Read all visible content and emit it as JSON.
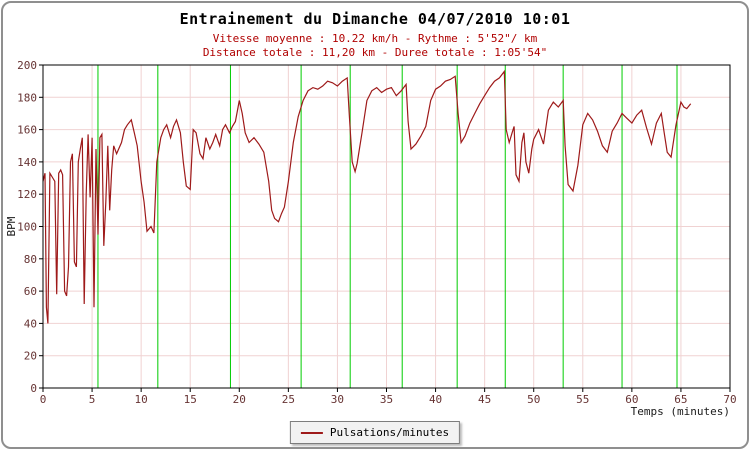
{
  "header": {
    "title": "Entrainement du Dimanche 04/07/2010 10:01",
    "subtitle1": "Vitesse moyenne : 10.22 km/h - Rythme : 5'52\"/ km",
    "subtitle2": "Distance totale : 11,20 km - Duree totale : 1:05'54\""
  },
  "legend": {
    "label": "Pulsations/minutes",
    "line_color": "#9e1a1a"
  },
  "colors": {
    "grid": "#f0d2d2",
    "tick_text": "#663333",
    "axis_label": "#1a1a1a",
    "plot_border": "#000000",
    "frame_border": "#8f8f8f",
    "series_line": "#9e1a1a",
    "km_marker": "#00cc00",
    "subtitle_text": "#b00000",
    "background": "#ffffff"
  },
  "chart_data": {
    "type": "line",
    "title": "Entrainement du Dimanche 04/07/2010 10:01",
    "xlabel": "Temps (minutes)",
    "ylabel": "BPM",
    "xlim": [
      0,
      70
    ],
    "ylim": [
      0,
      200
    ],
    "xticks": [
      0,
      5,
      10,
      15,
      20,
      25,
      30,
      35,
      40,
      45,
      50,
      55,
      60,
      65,
      70
    ],
    "yticks": [
      0,
      20,
      40,
      60,
      80,
      100,
      120,
      140,
      160,
      180,
      200
    ],
    "grid": true,
    "legend_position": "bottom",
    "km_markers": {
      "color": "#00cc00",
      "x": [
        5.6,
        11.7,
        19.1,
        26.3,
        31.3,
        36.6,
        42.2,
        47.1,
        53.0,
        59.0,
        64.6
      ]
    },
    "series": [
      {
        "name": "Pulsations/minutes",
        "color": "#9e1a1a",
        "points": [
          [
            0,
            128
          ],
          [
            0.2,
            133
          ],
          [
            0.35,
            50
          ],
          [
            0.5,
            40
          ],
          [
            0.7,
            133
          ],
          [
            1,
            130
          ],
          [
            1.2,
            128
          ],
          [
            1.4,
            58
          ],
          [
            1.6,
            133
          ],
          [
            1.8,
            135
          ],
          [
            2,
            132
          ],
          [
            2.2,
            60
          ],
          [
            2.4,
            57
          ],
          [
            2.6,
            75
          ],
          [
            2.8,
            140
          ],
          [
            3,
            145
          ],
          [
            3.2,
            78
          ],
          [
            3.4,
            75
          ],
          [
            3.6,
            140
          ],
          [
            3.8,
            148
          ],
          [
            4,
            155
          ],
          [
            4.2,
            52
          ],
          [
            4.4,
            120
          ],
          [
            4.6,
            157
          ],
          [
            4.8,
            118
          ],
          [
            5,
            155
          ],
          [
            5.2,
            50
          ],
          [
            5.4,
            148
          ],
          [
            5.6,
            95
          ],
          [
            5.8,
            155
          ],
          [
            6,
            157
          ],
          [
            6.2,
            88
          ],
          [
            6.4,
            115
          ],
          [
            6.6,
            150
          ],
          [
            6.8,
            110
          ],
          [
            7,
            135
          ],
          [
            7.2,
            150
          ],
          [
            7.5,
            145
          ],
          [
            8,
            152
          ],
          [
            8.3,
            160
          ],
          [
            8.6,
            163
          ],
          [
            9,
            166
          ],
          [
            9.3,
            158
          ],
          [
            9.6,
            150
          ],
          [
            10,
            128
          ],
          [
            10.3,
            115
          ],
          [
            10.6,
            97
          ],
          [
            11,
            100
          ],
          [
            11.3,
            96
          ],
          [
            11.6,
            140
          ],
          [
            12,
            155
          ],
          [
            12.3,
            160
          ],
          [
            12.6,
            163
          ],
          [
            13,
            155
          ],
          [
            13.3,
            162
          ],
          [
            13.6,
            166
          ],
          [
            14,
            158
          ],
          [
            14.3,
            140
          ],
          [
            14.6,
            125
          ],
          [
            15,
            123
          ],
          [
            15.3,
            160
          ],
          [
            15.6,
            158
          ],
          [
            16,
            145
          ],
          [
            16.3,
            142
          ],
          [
            16.6,
            155
          ],
          [
            17,
            148
          ],
          [
            17.3,
            152
          ],
          [
            17.6,
            157
          ],
          [
            18,
            150
          ],
          [
            18.3,
            160
          ],
          [
            18.6,
            163
          ],
          [
            19,
            158
          ],
          [
            19.3,
            162
          ],
          [
            19.6,
            165
          ],
          [
            20,
            178
          ],
          [
            20.3,
            170
          ],
          [
            20.6,
            158
          ],
          [
            21,
            152
          ],
          [
            21.5,
            155
          ],
          [
            22,
            151
          ],
          [
            22.5,
            146
          ],
          [
            23,
            128
          ],
          [
            23.3,
            110
          ],
          [
            23.6,
            105
          ],
          [
            24,
            103
          ],
          [
            24.3,
            108
          ],
          [
            24.6,
            112
          ],
          [
            25,
            128
          ],
          [
            25.5,
            152
          ],
          [
            26,
            168
          ],
          [
            26.5,
            178
          ],
          [
            27,
            184
          ],
          [
            27.5,
            186
          ],
          [
            28,
            185
          ],
          [
            28.5,
            187
          ],
          [
            29,
            190
          ],
          [
            29.5,
            189
          ],
          [
            30,
            187
          ],
          [
            30.5,
            190
          ],
          [
            31,
            192
          ],
          [
            31.2,
            170
          ],
          [
            31.5,
            140
          ],
          [
            31.8,
            134
          ],
          [
            32,
            139
          ],
          [
            32.5,
            158
          ],
          [
            33,
            178
          ],
          [
            33.5,
            184
          ],
          [
            34,
            186
          ],
          [
            34.5,
            183
          ],
          [
            35,
            185
          ],
          [
            35.5,
            186
          ],
          [
            36,
            181
          ],
          [
            36.5,
            184
          ],
          [
            37,
            188
          ],
          [
            37.2,
            165
          ],
          [
            37.5,
            148
          ],
          [
            38,
            151
          ],
          [
            38.5,
            156
          ],
          [
            39,
            162
          ],
          [
            39.5,
            178
          ],
          [
            40,
            185
          ],
          [
            40.5,
            187
          ],
          [
            41,
            190
          ],
          [
            41.5,
            191
          ],
          [
            42,
            193
          ],
          [
            42.3,
            170
          ],
          [
            42.6,
            152
          ],
          [
            43,
            156
          ],
          [
            43.5,
            164
          ],
          [
            44,
            170
          ],
          [
            44.5,
            176
          ],
          [
            45,
            181
          ],
          [
            45.5,
            186
          ],
          [
            46,
            190
          ],
          [
            46.5,
            192
          ],
          [
            47,
            196
          ],
          [
            47.2,
            160
          ],
          [
            47.5,
            152
          ],
          [
            47.8,
            158
          ],
          [
            48,
            162
          ],
          [
            48.2,
            132
          ],
          [
            48.5,
            128
          ],
          [
            48.8,
            152
          ],
          [
            49,
            158
          ],
          [
            49.2,
            140
          ],
          [
            49.5,
            133
          ],
          [
            49.8,
            148
          ],
          [
            50,
            154
          ],
          [
            50.5,
            160
          ],
          [
            51,
            151
          ],
          [
            51.5,
            172
          ],
          [
            52,
            177
          ],
          [
            52.5,
            174
          ],
          [
            53,
            178
          ],
          [
            53.2,
            150
          ],
          [
            53.5,
            126
          ],
          [
            54,
            122
          ],
          [
            54.5,
            138
          ],
          [
            55,
            163
          ],
          [
            55.5,
            170
          ],
          [
            56,
            166
          ],
          [
            56.5,
            159
          ],
          [
            57,
            150
          ],
          [
            57.5,
            146
          ],
          [
            58,
            159
          ],
          [
            58.5,
            164
          ],
          [
            59,
            170
          ],
          [
            59.5,
            167
          ],
          [
            60,
            164
          ],
          [
            60.5,
            169
          ],
          [
            61,
            172
          ],
          [
            61.5,
            161
          ],
          [
            62,
            151
          ],
          [
            62.5,
            164
          ],
          [
            63,
            170
          ],
          [
            63.3,
            158
          ],
          [
            63.6,
            146
          ],
          [
            64,
            143
          ],
          [
            64.5,
            163
          ],
          [
            65,
            177
          ],
          [
            65.3,
            174
          ],
          [
            65.6,
            173
          ],
          [
            66,
            176
          ]
        ]
      }
    ]
  }
}
